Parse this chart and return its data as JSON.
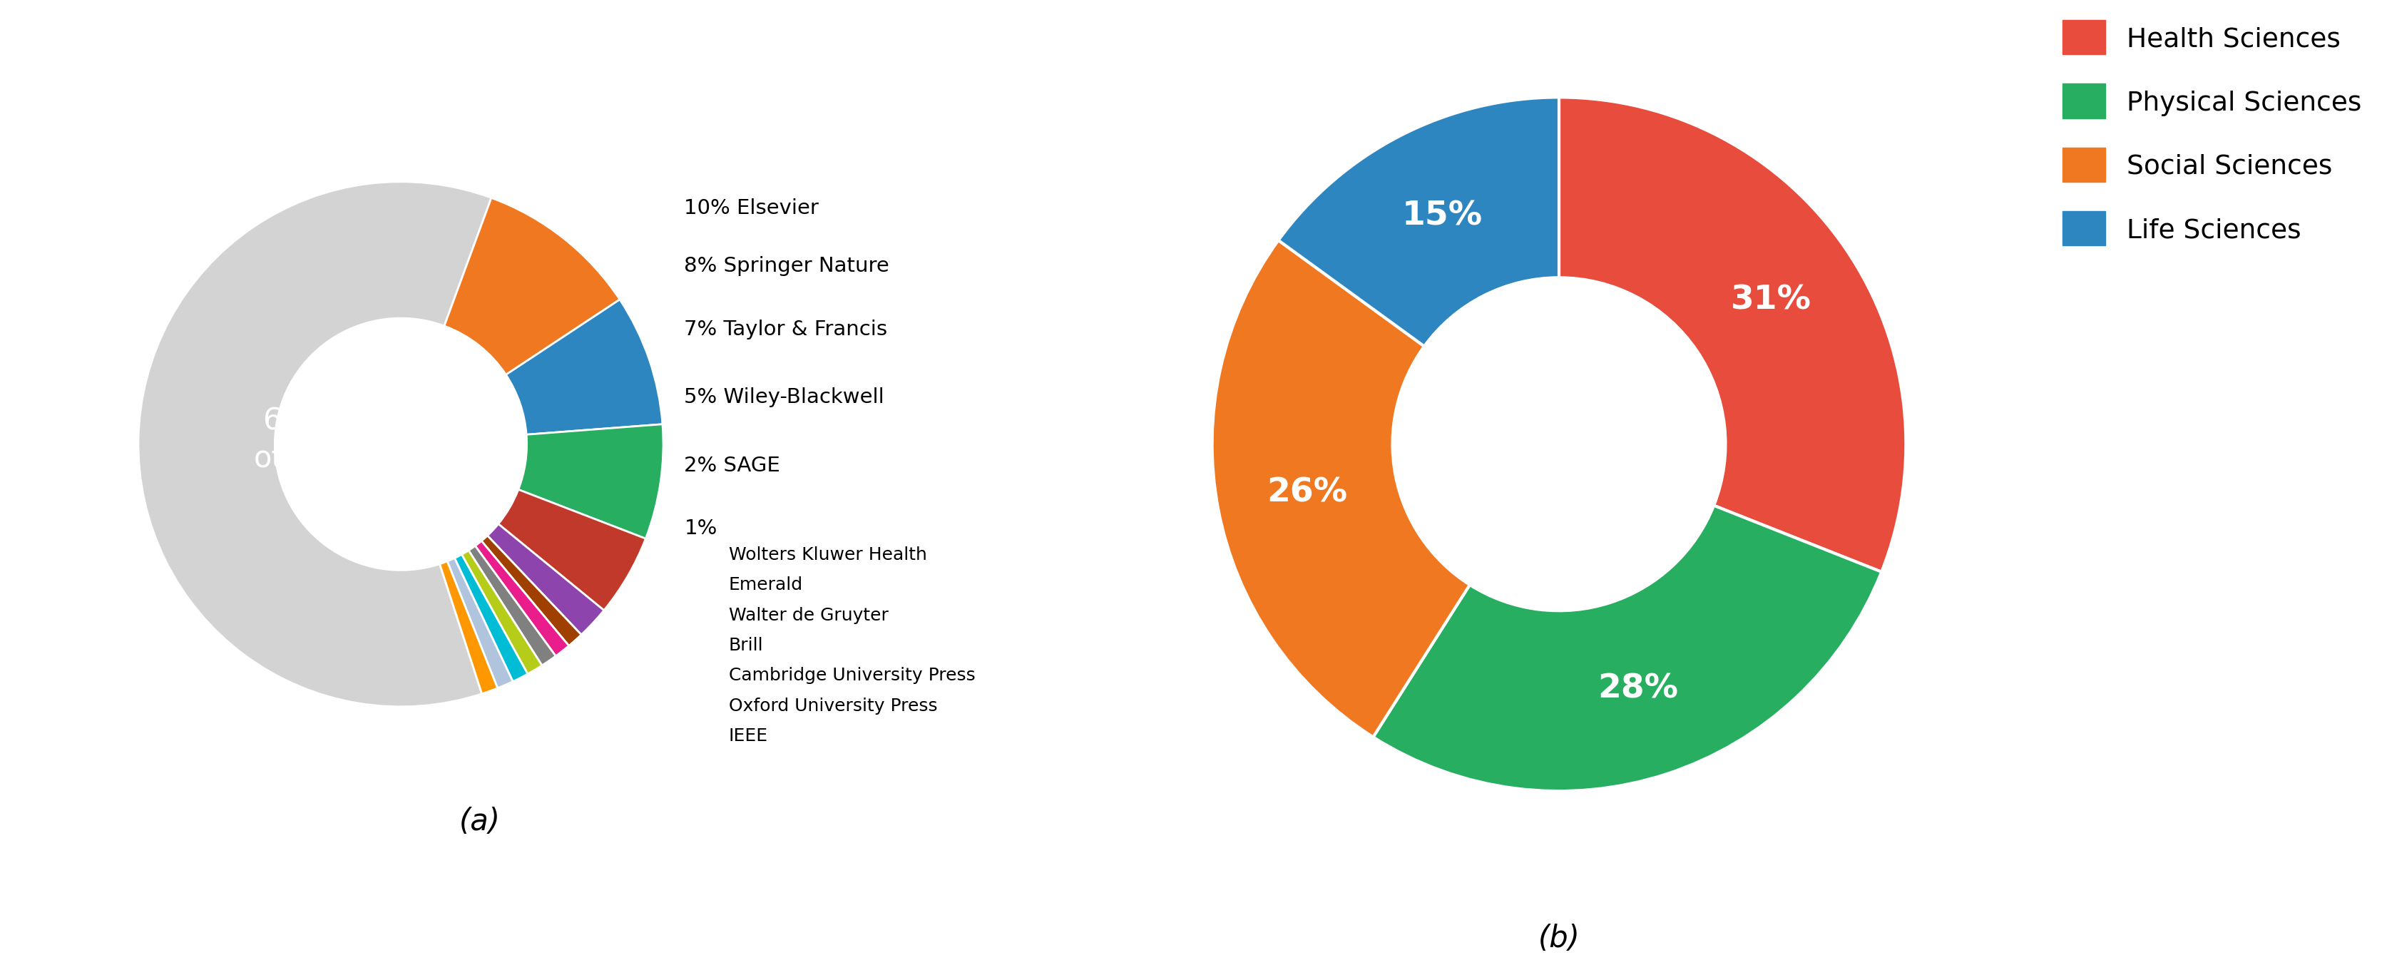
{
  "chart_a": {
    "labels": [
      "others",
      "Elsevier",
      "Springer Nature",
      "Taylor & Francis",
      "Wiley-Blackwell",
      "SAGE",
      "Wolters Kluwer Health",
      "Emerald",
      "Walter de Gruyter",
      "Brill",
      "Cambridge University Press",
      "Oxford University Press",
      "IEEE"
    ],
    "values": [
      60,
      10,
      8,
      7,
      5,
      2,
      1,
      1,
      1,
      1,
      1,
      1,
      1
    ],
    "colors": [
      "#d3d3d3",
      "#f07820",
      "#2e86c1",
      "#27ae60",
      "#c0392b",
      "#8e44ad",
      "#a04000",
      "#e91e8c",
      "#808080",
      "#b5cc18",
      "#00bcd4",
      "#b0c4de",
      "#ff9800"
    ],
    "subtitle": "(a)",
    "inner_label_color": "#ffffff",
    "sub_annotations": [
      "Wolters Kluwer Health",
      "Emerald",
      "Walter de Gruyter",
      "Brill",
      "Cambridge University Press",
      "Oxford University Press",
      "IEEE"
    ]
  },
  "chart_b": {
    "labels": [
      "Health Sciences",
      "Physical Sciences",
      "Social Sciences",
      "Life Sciences"
    ],
    "values": [
      31,
      28,
      26,
      15
    ],
    "colors": [
      "#e74c3c",
      "#27ae60",
      "#f07820",
      "#2e86c1"
    ],
    "pct_labels": [
      "31%",
      "28%",
      "26%",
      "15%"
    ],
    "subtitle": "(b)",
    "legend_labels": [
      "Health Sciences",
      "Physical Sciences",
      "Social Sciences",
      "Life Sciences"
    ],
    "legend_colors": [
      "#e74c3c",
      "#27ae60",
      "#f07820",
      "#2e86c1"
    ]
  },
  "bg_color": "#ffffff",
  "fontname": "DejaVu Sans"
}
